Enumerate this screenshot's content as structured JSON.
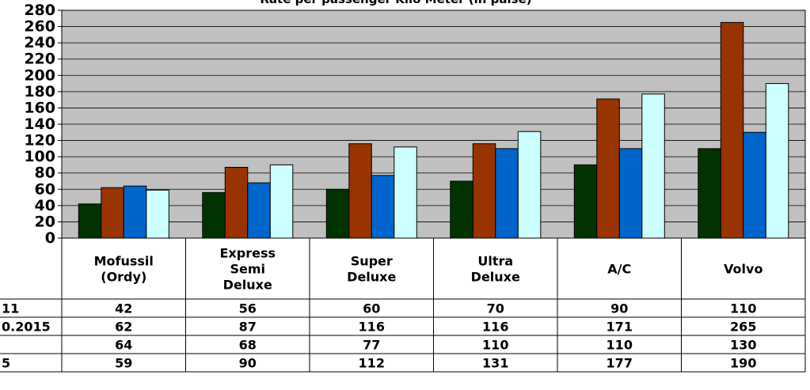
{
  "chart_data": {
    "type": "bar",
    "title": "Rate per passenger Kilo Meter (in paise)",
    "categories": [
      [
        "Mofussil",
        "(Ordy)"
      ],
      [
        "Express",
        "Semi",
        "Deluxe"
      ],
      [
        "Super",
        "Deluxe"
      ],
      [
        "Ultra",
        "Deluxe"
      ],
      [
        "A/C"
      ],
      [
        "Volvo"
      ]
    ],
    "series": [
      {
        "name": "11",
        "color": "#003300",
        "values": [
          42,
          56,
          60,
          70,
          90,
          110
        ]
      },
      {
        "name": "0.2015",
        "color": "#993300",
        "values": [
          62,
          87,
          116,
          116,
          171,
          265
        ]
      },
      {
        "name": "",
        "color": "#0066cc",
        "values": [
          64,
          68,
          77,
          110,
          110,
          130
        ]
      },
      {
        "name": "5",
        "color": "#ccffff",
        "values": [
          59,
          90,
          112,
          131,
          177,
          190
        ]
      }
    ],
    "ylim": [
      0,
      280
    ],
    "yticks": [
      0,
      20,
      40,
      60,
      80,
      100,
      120,
      140,
      160,
      180,
      200,
      220,
      240,
      260,
      280
    ],
    "grid": true,
    "plot_background": "#c0c0c0",
    "legend": "data-table-below"
  }
}
